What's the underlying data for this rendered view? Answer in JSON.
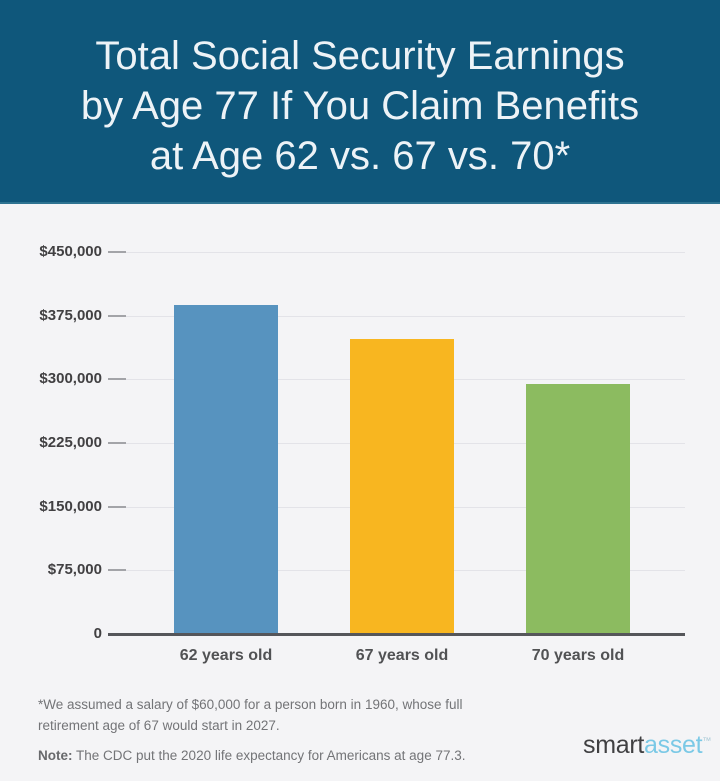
{
  "header": {
    "title_lines": [
      "Total Social Security Earnings",
      "by Age 77 If You Claim Benefits",
      "at Age 62 vs. 67 vs. 70*"
    ],
    "bg_color": "#0F577B",
    "text_color": "#EDF3F7"
  },
  "chart_data": {
    "type": "bar",
    "title": "Total Social Security Earnings by Age 77 If You Claim Benefits at Age 62 vs. 67 vs. 70*",
    "categories": [
      "62 years old",
      "67 years old",
      "70 years old"
    ],
    "values": [
      388000,
      348000,
      295000
    ],
    "bar_colors": [
      "#5793BF",
      "#F8B620",
      "#8CBB60"
    ],
    "xlabel": "",
    "ylabel": "",
    "ylim": [
      0,
      450000
    ],
    "grid": true,
    "legend_position": "none",
    "yticks": [
      {
        "value": 450000,
        "label": "$450,000"
      },
      {
        "value": 375000,
        "label": "$375,000"
      },
      {
        "value": 300000,
        "label": "$300,000"
      },
      {
        "value": 225000,
        "label": "$225,000"
      },
      {
        "value": 150000,
        "label": "$150,000"
      },
      {
        "value": 75000,
        "label": "$75,000"
      },
      {
        "value": 0,
        "label": "0"
      }
    ]
  },
  "footer": {
    "footnote": "*We assumed a salary of $60,000 for a person born in 1960, whose full retirement age of 67 would start in 2027.",
    "note_label": "Note:",
    "note_text": " The CDC put the 2020 life expectancy for Americans at age 77.3.",
    "logo": {
      "part1": "smart",
      "part2": "asset",
      "trademark": "™",
      "part1_color": "#404042",
      "part2_color": "#7BC9E6"
    }
  }
}
